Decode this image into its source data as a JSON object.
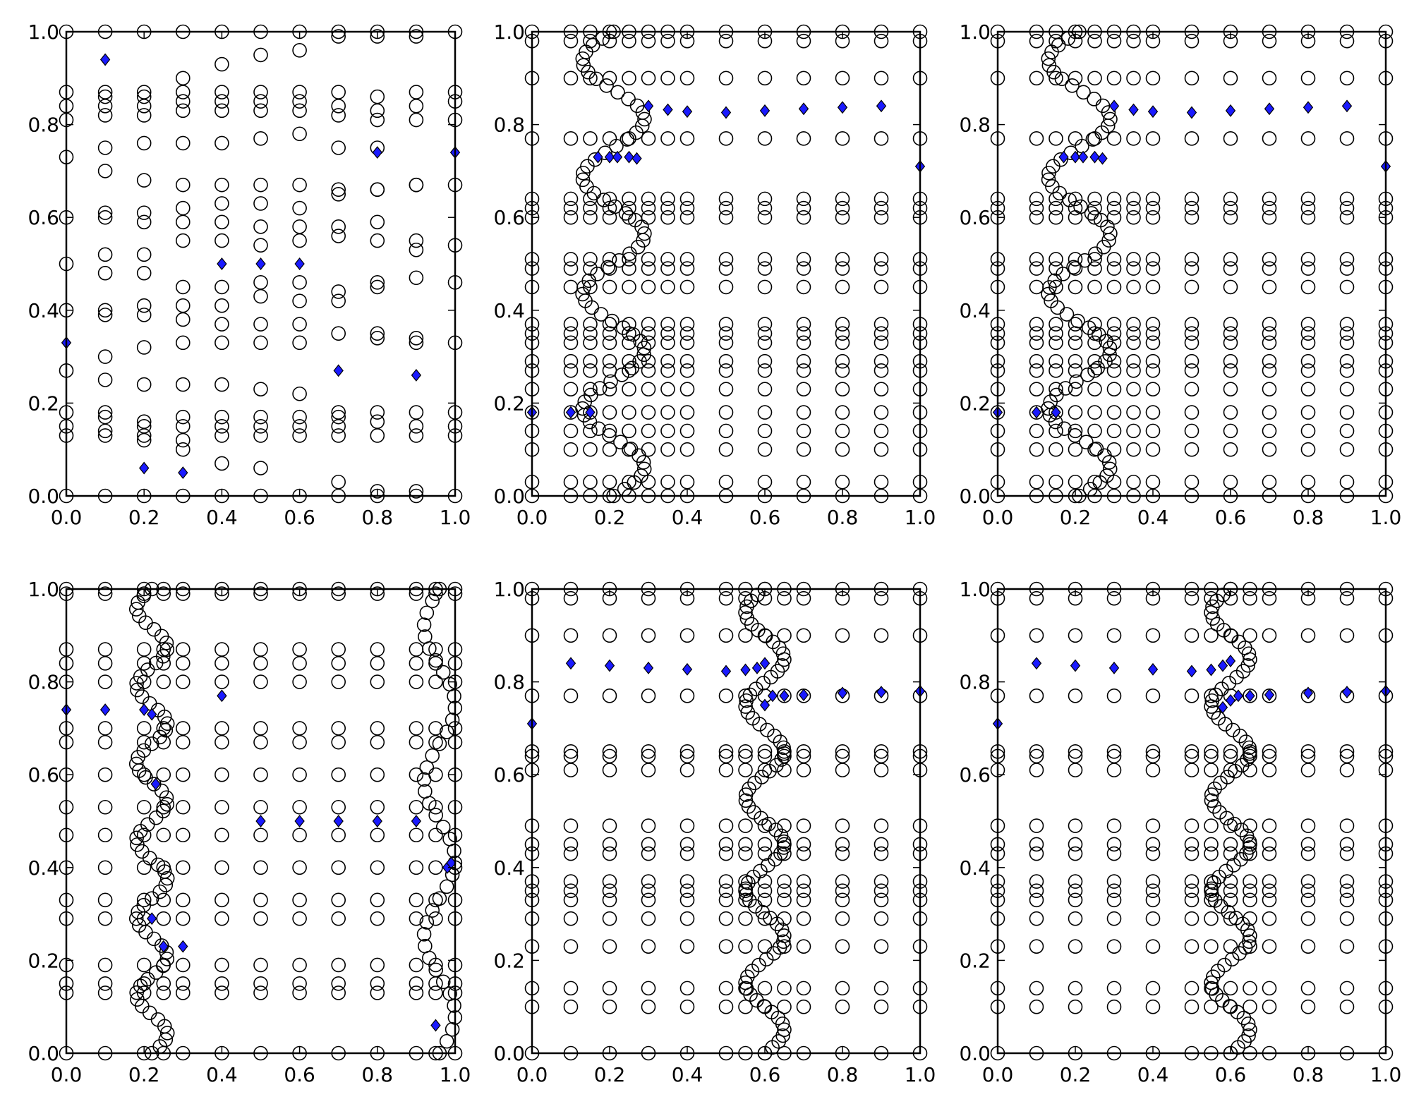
{
  "chart_data": {
    "type": "scatter",
    "layout": "2x3 grid",
    "xlim": [
      0,
      1
    ],
    "ylim": [
      0,
      1
    ],
    "xticks": [
      "0.0",
      "0.2",
      "0.4",
      "0.6",
      "0.8",
      "1.0"
    ],
    "yticks": [
      "0.0",
      "0.2",
      "0.4",
      "0.6",
      "0.8",
      "1.0"
    ],
    "colors": {
      "circle_edge": "#000000",
      "circle_fill": "none",
      "diamond_fill": "#1a1aff",
      "diamond_edge": "#000000"
    },
    "circle_sets": [
      {
        "columns": [
          {
            "x": 0,
            "y": [
              0,
              0.13,
              0.15,
              0.18,
              0.27,
              0.4,
              0.5,
              0.6,
              0.73,
              0.81,
              0.84,
              0.87,
              1
            ]
          },
          {
            "x": 0.1,
            "y": [
              0,
              0.13,
              0.14,
              0.17,
              0.18,
              0.25,
              0.3,
              0.39,
              0.4,
              0.48,
              0.52,
              0.6,
              0.61,
              0.7,
              0.75,
              0.82,
              0.84,
              0.86,
              0.87,
              1
            ]
          },
          {
            "x": 0.2,
            "y": [
              0,
              0.12,
              0.13,
              0.15,
              0.16,
              0.24,
              0.32,
              0.39,
              0.41,
              0.48,
              0.52,
              0.59,
              0.61,
              0.68,
              0.76,
              0.82,
              0.84,
              0.86,
              0.87,
              1
            ]
          },
          {
            "x": 0.3,
            "y": [
              0,
              0.1,
              0.12,
              0.15,
              0.17,
              0.24,
              0.33,
              0.38,
              0.41,
              0.45,
              0.55,
              0.59,
              0.62,
              0.67,
              0.76,
              0.83,
              0.85,
              0.87,
              0.9,
              1
            ]
          },
          {
            "x": 0.4,
            "y": [
              0,
              0.07,
              0.13,
              0.15,
              0.17,
              0.24,
              0.33,
              0.37,
              0.41,
              0.45,
              0.55,
              0.59,
              0.63,
              0.67,
              0.76,
              0.83,
              0.85,
              0.87,
              0.93,
              1
            ]
          },
          {
            "x": 0.5,
            "y": [
              0,
              0.06,
              0.13,
              0.15,
              0.17,
              0.23,
              0.33,
              0.37,
              0.43,
              0.46,
              0.54,
              0.58,
              0.63,
              0.67,
              0.77,
              0.83,
              0.85,
              0.87,
              0.95,
              1
            ]
          },
          {
            "x": 0.6,
            "y": [
              0,
              0.13,
              0.15,
              0.17,
              0.22,
              0.33,
              0.37,
              0.42,
              0.46,
              0.55,
              0.58,
              0.62,
              0.67,
              0.78,
              0.83,
              0.85,
              0.87,
              0.96,
              1
            ]
          },
          {
            "x": 0.7,
            "y": [
              0,
              0.03,
              0.13,
              0.15,
              0.17,
              0.18,
              0.35,
              0.42,
              0.44,
              0.56,
              0.58,
              0.65,
              0.66,
              0.75,
              0.82,
              0.84,
              0.87,
              0.99,
              1
            ]
          },
          {
            "x": 0.8,
            "y": [
              0,
              0.01,
              0.13,
              0.16,
              0.18,
              0.34,
              0.35,
              0.45,
              0.46,
              0.55,
              0.59,
              0.66,
              0.66,
              0.75,
              0.81,
              0.83,
              0.86,
              0.99,
              1
            ]
          },
          {
            "x": 0.9,
            "y": [
              0,
              0.01,
              0.13,
              0.15,
              0.18,
              0.33,
              0.34,
              0.47,
              0.53,
              0.55,
              0.67,
              0.67,
              0.81,
              0.84,
              0.87,
              0.99,
              1
            ]
          },
          {
            "x": 1.0,
            "y": [
              0,
              0.13,
              0.15,
              0.18,
              0.33,
              0.46,
              0.54,
              0.67,
              0.81,
              0.85,
              0.87,
              1
            ]
          }
        ],
        "waves": []
      },
      {
        "columns_x": [
          0,
          0.1,
          0.15,
          0.2,
          0.25,
          0.3,
          0.35,
          0.4,
          0.5,
          0.6,
          0.7,
          0.8,
          0.9,
          1.0
        ],
        "levels": [
          0,
          0.03,
          0.1,
          0.14,
          0.18,
          0.23,
          0.27,
          0.29,
          0.33,
          0.35,
          0.37,
          0.45,
          0.49,
          0.51,
          0.6,
          0.62,
          0.64,
          0.77,
          0.9,
          0.98,
          1
        ],
        "waves": [
          {
            "center": 0.21,
            "amp": 0.08,
            "cycles": 4,
            "n": 70
          }
        ]
      },
      {
        "columns_x": [
          0,
          0.1,
          0.2,
          0.25,
          0.3,
          0.4,
          0.5,
          0.6,
          0.7,
          0.8,
          0.9,
          0.95,
          1.0
        ],
        "levels": [
          0,
          0.13,
          0.15,
          0.19,
          0.29,
          0.33,
          0.4,
          0.47,
          0.53,
          0.6,
          0.67,
          0.7,
          0.8,
          0.84,
          0.87,
          0.99,
          1
        ],
        "waves": [
          {
            "center": 0.22,
            "amp": 0.04,
            "cycles": 6,
            "n": 70
          },
          {
            "center": 0.96,
            "amp": 0.04,
            "cycles": 3,
            "n": 40
          }
        ]
      },
      {
        "columns_x": [
          0,
          0.1,
          0.2,
          0.3,
          0.4,
          0.5,
          0.55,
          0.6,
          0.65,
          0.7,
          0.8,
          0.9,
          1.0
        ],
        "levels": [
          0,
          0.1,
          0.14,
          0.23,
          0.29,
          0.33,
          0.35,
          0.37,
          0.43,
          0.45,
          0.49,
          0.61,
          0.64,
          0.65,
          0.77,
          0.9,
          0.98,
          1
        ],
        "waves": [
          {
            "center": 0.6,
            "amp": 0.05,
            "cycles": 5,
            "n": 80
          }
        ]
      }
    ],
    "panels": [
      {
        "circle_set": 0,
        "diamonds": [
          [
            0.1,
            0.94
          ],
          [
            0.8,
            0.74
          ],
          [
            1.0,
            0.74
          ],
          [
            0.4,
            0.5
          ],
          [
            0.5,
            0.5
          ],
          [
            0.6,
            0.5
          ],
          [
            0,
            0.33
          ],
          [
            0.7,
            0.27
          ],
          [
            0.9,
            0.26
          ],
          [
            0.2,
            0.06
          ],
          [
            0.3,
            0.05
          ]
        ]
      },
      {
        "circle_set": 1,
        "diamonds": [
          [
            0,
            0.18
          ],
          [
            0.1,
            0.18
          ],
          [
            0.15,
            0.18
          ],
          [
            0.17,
            0.73
          ],
          [
            0.2,
            0.73
          ],
          [
            0.22,
            0.73
          ],
          [
            0.25,
            0.73
          ],
          [
            0.27,
            0.727
          ],
          [
            0.3,
            0.84
          ],
          [
            0.35,
            0.832
          ],
          [
            0.4,
            0.828
          ],
          [
            0.5,
            0.826
          ],
          [
            0.6,
            0.83
          ],
          [
            0.7,
            0.834
          ],
          [
            0.8,
            0.837
          ],
          [
            0.9,
            0.84
          ],
          [
            1.0,
            0.71
          ]
        ]
      },
      {
        "circle_set": 1,
        "diamonds": [
          [
            0,
            0.18
          ],
          [
            0.1,
            0.18
          ],
          [
            0.15,
            0.18
          ],
          [
            0.17,
            0.73
          ],
          [
            0.2,
            0.73
          ],
          [
            0.22,
            0.73
          ],
          [
            0.25,
            0.73
          ],
          [
            0.27,
            0.727
          ],
          [
            0.3,
            0.84
          ],
          [
            0.35,
            0.832
          ],
          [
            0.4,
            0.828
          ],
          [
            0.5,
            0.826
          ],
          [
            0.6,
            0.83
          ],
          [
            0.7,
            0.834
          ],
          [
            0.8,
            0.837
          ],
          [
            0.9,
            0.84
          ],
          [
            1.0,
            0.71
          ]
        ]
      },
      {
        "circle_set": 2,
        "diamonds": [
          [
            0,
            0.74
          ],
          [
            0.1,
            0.74
          ],
          [
            0.2,
            0.74
          ],
          [
            0.22,
            0.73
          ],
          [
            0.23,
            0.58
          ],
          [
            0.22,
            0.29
          ],
          [
            0.25,
            0.23
          ],
          [
            0.3,
            0.23
          ],
          [
            0.4,
            0.77
          ],
          [
            0.5,
            0.5
          ],
          [
            0.6,
            0.5
          ],
          [
            0.7,
            0.5
          ],
          [
            0.8,
            0.5
          ],
          [
            0.9,
            0.5
          ],
          [
            0.98,
            0.4
          ],
          [
            0.99,
            0.41
          ],
          [
            0.95,
            0.06
          ]
        ]
      },
      {
        "circle_set": 3,
        "diamonds": [
          [
            0,
            0.71
          ],
          [
            0.1,
            0.84
          ],
          [
            0.2,
            0.835
          ],
          [
            0.3,
            0.83
          ],
          [
            0.4,
            0.827
          ],
          [
            0.5,
            0.823
          ],
          [
            0.55,
            0.826
          ],
          [
            0.58,
            0.83
          ],
          [
            0.6,
            0.84
          ],
          [
            0.6,
            0.75
          ],
          [
            0.62,
            0.77
          ],
          [
            0.65,
            0.77
          ],
          [
            0.7,
            0.772
          ],
          [
            0.8,
            0.776
          ],
          [
            0.9,
            0.778
          ],
          [
            1.0,
            0.78
          ]
        ]
      },
      {
        "circle_set": 3,
        "diamonds": [
          [
            0,
            0.71
          ],
          [
            0.1,
            0.84
          ],
          [
            0.2,
            0.835
          ],
          [
            0.3,
            0.83
          ],
          [
            0.4,
            0.827
          ],
          [
            0.5,
            0.823
          ],
          [
            0.55,
            0.826
          ],
          [
            0.58,
            0.835
          ],
          [
            0.6,
            0.845
          ],
          [
            0.58,
            0.745
          ],
          [
            0.6,
            0.76
          ],
          [
            0.62,
            0.77
          ],
          [
            0.65,
            0.77
          ],
          [
            0.7,
            0.772
          ],
          [
            0.8,
            0.776
          ],
          [
            0.9,
            0.778
          ],
          [
            1.0,
            0.78
          ]
        ]
      }
    ]
  }
}
